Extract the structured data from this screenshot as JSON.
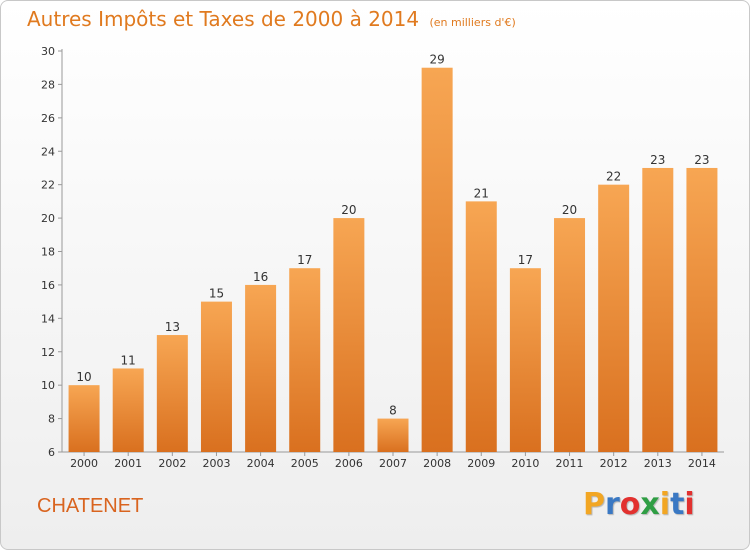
{
  "chart_data": {
    "type": "bar",
    "title": "Autres Impôts et Taxes de 2000 à 2014",
    "unit": "(en milliers d'€)",
    "categories": [
      "2000",
      "2001",
      "2002",
      "2003",
      "2004",
      "2005",
      "2006",
      "2007",
      "2008",
      "2009",
      "2010",
      "2011",
      "2012",
      "2013",
      "2014"
    ],
    "values": [
      10,
      11,
      13,
      15,
      16,
      17,
      20,
      8,
      29,
      21,
      17,
      20,
      22,
      23,
      23
    ],
    "ylim": [
      6,
      30
    ],
    "yticks": [
      6,
      8,
      10,
      12,
      14,
      16,
      18,
      20,
      22,
      24,
      26,
      28,
      30
    ],
    "grid": false,
    "bar_color": "#f0963c"
  },
  "footer": {
    "city": "CHATENET",
    "logo": {
      "letters": [
        "P",
        "r",
        "o",
        "x",
        "i",
        "t",
        "i"
      ],
      "colors": [
        "#f2a623",
        "#3a78c3",
        "#e2312f",
        "#2f9e44",
        "#f2a623",
        "#3a78c3",
        "#e2312f"
      ]
    }
  }
}
